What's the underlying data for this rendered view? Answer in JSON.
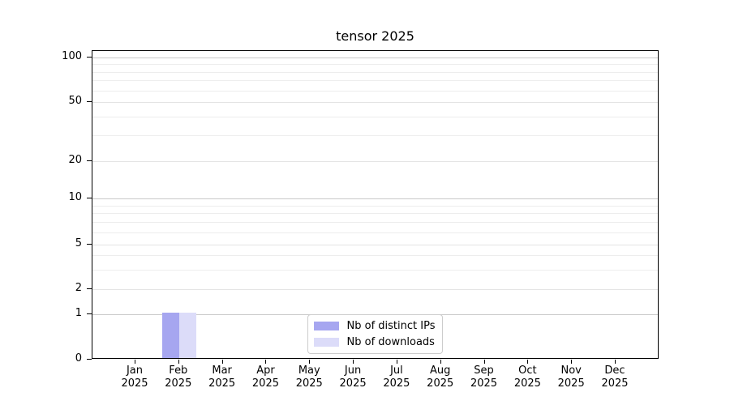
{
  "chart_data": {
    "type": "bar",
    "title": "tensor 2025",
    "categories": [
      "Jan\n2025",
      "Feb\n2025",
      "Mar\n2025",
      "Apr\n2025",
      "May\n2025",
      "Jun\n2025",
      "Jul\n2025",
      "Aug\n2025",
      "Sep\n2025",
      "Oct\n2025",
      "Nov\n2025",
      "Dec\n2025"
    ],
    "series": [
      {
        "name": "Nb of distinct IPs",
        "color": "#a6a6f0",
        "values": [
          0,
          1,
          0,
          0,
          0,
          0,
          0,
          0,
          0,
          0,
          0,
          0
        ]
      },
      {
        "name": "Nb of downloads",
        "color": "#dcdcf9",
        "values": [
          0,
          1,
          0,
          0,
          0,
          0,
          0,
          0,
          0,
          0,
          0,
          0
        ]
      }
    ],
    "xlabel": "",
    "ylabel": "",
    "yscale": "log-with-zero",
    "ylim": [
      0,
      110
    ],
    "ytick_values": [
      0,
      1,
      2,
      5,
      10,
      20,
      50,
      100
    ],
    "ytick_labels": [
      "0",
      "1",
      "2",
      "5",
      "10",
      "20",
      "50",
      "100"
    ],
    "minor_gridline_values": [
      3,
      4,
      6,
      7,
      8,
      9,
      30,
      40,
      60,
      70,
      80,
      90
    ],
    "grid": true,
    "legend_position": "lower center"
  },
  "colors": {
    "background": "#ffffff",
    "spine": "#000000",
    "grid_decade": "#c9c9c9",
    "grid_major": "#e4e4e4",
    "grid_minor": "#ededed",
    "text": "#000000",
    "legend_border": "#cccccc"
  }
}
